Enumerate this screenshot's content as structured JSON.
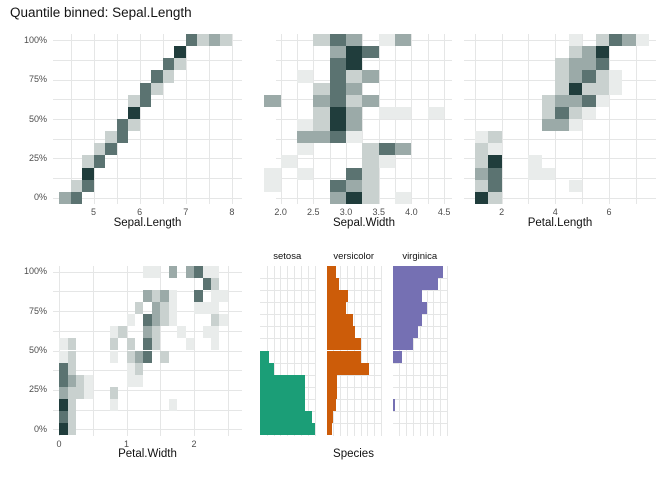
{
  "chart_data": {
    "type": "heatmap",
    "title": "Quantile binned: Sepal.Length",
    "y_axis": {
      "tick_labels": [
        "100%",
        "75%",
        "50%",
        "25%",
        "0%"
      ],
      "n_bins": 14
    },
    "shade_palette": [
      "#e9eceb",
      "#c9d1cf",
      "#9baaa8",
      "#5b7371",
      "#203d3c"
    ],
    "grid_color": "#e5e6e6",
    "panels": [
      {
        "key": "sepal-length",
        "xlabel": "Sepal.Length",
        "xmin": 4.12,
        "xmax": 8.22,
        "col0": 4.25,
        "colw": 0.25,
        "ticks": [
          {
            "v": 5,
            "l": "5"
          },
          {
            "v": 6,
            "l": "6"
          },
          {
            "v": 7,
            "l": "7"
          },
          {
            "v": 8,
            "l": "8"
          }
        ],
        "grid_values": [
          4.5,
          5,
          5.5,
          6,
          6.5,
          7,
          7.5,
          8
        ],
        "tiles": [
          [
            1,
            0,
            3
          ],
          [
            1,
            1,
            4
          ],
          [
            2,
            1,
            2
          ],
          [
            2,
            2,
            4
          ],
          [
            3,
            2,
            5
          ],
          [
            4,
            2,
            2
          ],
          [
            4,
            3,
            4
          ],
          [
            5,
            3,
            2
          ],
          [
            5,
            4,
            4
          ],
          [
            6,
            4,
            2
          ],
          [
            6,
            5,
            4
          ],
          [
            7,
            5,
            4
          ],
          [
            7,
            6,
            2
          ],
          [
            8,
            6,
            5
          ],
          [
            9,
            6,
            2
          ],
          [
            9,
            7,
            4
          ],
          [
            10,
            7,
            4
          ],
          [
            10,
            8,
            2
          ],
          [
            11,
            8,
            4
          ],
          [
            11,
            9,
            2
          ],
          [
            12,
            9,
            4
          ],
          [
            12,
            10,
            2
          ],
          [
            13,
            10,
            5
          ],
          [
            14,
            11,
            4
          ],
          [
            14,
            12,
            2
          ],
          [
            14,
            13,
            3
          ],
          [
            14,
            14,
            2
          ]
        ]
      },
      {
        "key": "sepal-width",
        "xlabel": "Sepal.Width",
        "xmin": 1.93,
        "xmax": 4.62,
        "col0": 1.75,
        "colw": 0.25,
        "ticks": [
          {
            "v": 2,
            "l": "2.0"
          },
          {
            "v": 2.5,
            "l": "2.5"
          },
          {
            "v": 3,
            "l": "3.0"
          },
          {
            "v": 3.5,
            "l": "3.5"
          },
          {
            "v": 4,
            "l": "4.0"
          },
          {
            "v": 4.5,
            "l": "4.5"
          }
        ],
        "grid_values": [
          2,
          2.25,
          2.5,
          2.75,
          3,
          3.25,
          3.5,
          3.75,
          4,
          4.25,
          4.5
        ],
        "tiles": [
          [
            1,
            4,
            3
          ],
          [
            1,
            5,
            5
          ],
          [
            1,
            6,
            2
          ],
          [
            1,
            8,
            1
          ],
          [
            2,
            0,
            1
          ],
          [
            2,
            4,
            4
          ],
          [
            2,
            5,
            3
          ],
          [
            2,
            6,
            2
          ],
          [
            3,
            0,
            1
          ],
          [
            3,
            2,
            1
          ],
          [
            3,
            5,
            4
          ],
          [
            3,
            6,
            2
          ],
          [
            4,
            1,
            1
          ],
          [
            4,
            6,
            2
          ],
          [
            4,
            7,
            1
          ],
          [
            5,
            2,
            1
          ],
          [
            5,
            6,
            2
          ],
          [
            5,
            7,
            4
          ],
          [
            5,
            8,
            3
          ],
          [
            6,
            2,
            3
          ],
          [
            6,
            3,
            3
          ],
          [
            6,
            4,
            4
          ],
          [
            6,
            5,
            1
          ],
          [
            7,
            2,
            1
          ],
          [
            7,
            3,
            2
          ],
          [
            7,
            4,
            5
          ],
          [
            7,
            5,
            3
          ],
          [
            8,
            3,
            2
          ],
          [
            8,
            4,
            5
          ],
          [
            8,
            5,
            3
          ],
          [
            8,
            7,
            1
          ],
          [
            8,
            8,
            1
          ],
          [
            8,
            10,
            1
          ],
          [
            9,
            0,
            3
          ],
          [
            9,
            3,
            3
          ],
          [
            9,
            4,
            4
          ],
          [
            9,
            5,
            2
          ],
          [
            9,
            6,
            3
          ],
          [
            10,
            3,
            2
          ],
          [
            10,
            4,
            4
          ],
          [
            10,
            5,
            3
          ],
          [
            11,
            2,
            1
          ],
          [
            11,
            4,
            4
          ],
          [
            11,
            5,
            2
          ],
          [
            11,
            6,
            3
          ],
          [
            12,
            4,
            4
          ],
          [
            12,
            5,
            5
          ],
          [
            13,
            4,
            3
          ],
          [
            13,
            5,
            5
          ],
          [
            13,
            6,
            4
          ],
          [
            14,
            3,
            2
          ],
          [
            14,
            4,
            4
          ],
          [
            14,
            5,
            3
          ],
          [
            14,
            7,
            1
          ],
          [
            14,
            8,
            3
          ]
        ]
      },
      {
        "key": "petal-length",
        "xlabel": "Petal.Length",
        "xmin": 0.6,
        "xmax": 7.75,
        "col0": 1.0,
        "colw": 0.5,
        "ticks": [
          {
            "v": 2,
            "l": "2"
          },
          {
            "v": 4,
            "l": "4"
          },
          {
            "v": 6,
            "l": "6"
          }
        ],
        "grid_values": [
          1,
          2,
          3,
          4,
          5,
          6,
          7
        ],
        "tiles": [
          [
            1,
            0,
            5
          ],
          [
            1,
            1,
            2
          ],
          [
            2,
            0,
            2
          ],
          [
            2,
            1,
            4
          ],
          [
            2,
            7,
            1
          ],
          [
            3,
            0,
            3
          ],
          [
            3,
            1,
            4
          ],
          [
            3,
            4,
            1
          ],
          [
            3,
            5,
            1
          ],
          [
            4,
            0,
            2
          ],
          [
            4,
            1,
            5
          ],
          [
            4,
            4,
            1
          ],
          [
            5,
            0,
            2
          ],
          [
            5,
            1,
            1
          ],
          [
            6,
            0,
            1
          ],
          [
            6,
            1,
            2
          ],
          [
            7,
            5,
            3
          ],
          [
            7,
            6,
            3
          ],
          [
            7,
            7,
            1
          ],
          [
            8,
            5,
            2
          ],
          [
            8,
            6,
            4
          ],
          [
            8,
            7,
            2
          ],
          [
            8,
            8,
            1
          ],
          [
            9,
            5,
            2
          ],
          [
            9,
            6,
            3
          ],
          [
            9,
            7,
            3
          ],
          [
            9,
            8,
            4
          ],
          [
            9,
            9,
            1
          ],
          [
            10,
            6,
            2
          ],
          [
            10,
            7,
            5
          ],
          [
            10,
            8,
            2
          ],
          [
            10,
            9,
            2
          ],
          [
            10,
            10,
            1
          ],
          [
            11,
            6,
            2
          ],
          [
            11,
            7,
            3
          ],
          [
            11,
            8,
            4
          ],
          [
            11,
            9,
            2
          ],
          [
            11,
            10,
            1
          ],
          [
            12,
            6,
            2
          ],
          [
            12,
            7,
            3
          ],
          [
            12,
            8,
            3
          ],
          [
            12,
            9,
            4
          ],
          [
            13,
            7,
            2
          ],
          [
            13,
            8,
            3
          ],
          [
            13,
            9,
            5
          ],
          [
            14,
            7,
            1
          ],
          [
            14,
            9,
            2
          ],
          [
            14,
            10,
            4
          ],
          [
            14,
            11,
            3
          ],
          [
            14,
            12,
            1
          ]
        ]
      },
      {
        "key": "petal-width",
        "xlabel": "Petal.Width",
        "xmin": -0.09,
        "xmax": 2.71,
        "col0": 0.0,
        "colw": 0.125,
        "ticks": [
          {
            "v": 0,
            "l": "0"
          },
          {
            "v": 1,
            "l": "1"
          },
          {
            "v": 2,
            "l": "2"
          }
        ],
        "grid_values": [
          0,
          0.5,
          1,
          1.5,
          2,
          2.5
        ],
        "tiles": [
          [
            1,
            0,
            5
          ],
          [
            1,
            1,
            2
          ],
          [
            2,
            0,
            4
          ],
          [
            2,
            1,
            2
          ],
          [
            3,
            0,
            5
          ],
          [
            3,
            1,
            2
          ],
          [
            3,
            6,
            1
          ],
          [
            3,
            13,
            1
          ],
          [
            4,
            0,
            3
          ],
          [
            4,
            1,
            2
          ],
          [
            4,
            2,
            2
          ],
          [
            4,
            3,
            1
          ],
          [
            4,
            6,
            2
          ],
          [
            5,
            0,
            4
          ],
          [
            5,
            1,
            3
          ],
          [
            5,
            2,
            2
          ],
          [
            5,
            3,
            1
          ],
          [
            5,
            8,
            1
          ],
          [
            5,
            9,
            1
          ],
          [
            6,
            0,
            4
          ],
          [
            6,
            1,
            2
          ],
          [
            6,
            8,
            1
          ],
          [
            6,
            9,
            2
          ],
          [
            7,
            0,
            1
          ],
          [
            7,
            1,
            2
          ],
          [
            7,
            6,
            1
          ],
          [
            7,
            8,
            2
          ],
          [
            7,
            9,
            3
          ],
          [
            7,
            10,
            4
          ],
          [
            7,
            12,
            2
          ],
          [
            8,
            0,
            1
          ],
          [
            8,
            1,
            2
          ],
          [
            8,
            6,
            2
          ],
          [
            8,
            8,
            2
          ],
          [
            8,
            10,
            4
          ],
          [
            8,
            11,
            2
          ],
          [
            8,
            15,
            1
          ],
          [
            8,
            18,
            1
          ],
          [
            9,
            6,
            1
          ],
          [
            9,
            7,
            2
          ],
          [
            9,
            10,
            3
          ],
          [
            9,
            11,
            2
          ],
          [
            9,
            14,
            1
          ],
          [
            9,
            17,
            1
          ],
          [
            9,
            18,
            1
          ],
          [
            10,
            8,
            1
          ],
          [
            10,
            10,
            4
          ],
          [
            10,
            11,
            3
          ],
          [
            10,
            12,
            2
          ],
          [
            10,
            13,
            1
          ],
          [
            10,
            18,
            2
          ],
          [
            10,
            19,
            1
          ],
          [
            11,
            9,
            2
          ],
          [
            11,
            11,
            3
          ],
          [
            11,
            12,
            2
          ],
          [
            11,
            13,
            1
          ],
          [
            11,
            16,
            1
          ],
          [
            11,
            17,
            1
          ],
          [
            11,
            18,
            1
          ],
          [
            12,
            10,
            3
          ],
          [
            12,
            11,
            2
          ],
          [
            12,
            12,
            3
          ],
          [
            12,
            13,
            1
          ],
          [
            12,
            16,
            4
          ],
          [
            12,
            18,
            1
          ],
          [
            12,
            19,
            1
          ],
          [
            13,
            17,
            4
          ],
          [
            13,
            18,
            2
          ],
          [
            14,
            10,
            1
          ],
          [
            14,
            11,
            1
          ],
          [
            14,
            13,
            3
          ],
          [
            14,
            15,
            3
          ],
          [
            14,
            16,
            4
          ],
          [
            14,
            17,
            1
          ],
          [
            14,
            18,
            1
          ]
        ]
      }
    ],
    "species": {
      "xlabel": "Species",
      "groups": [
        {
          "label": "setosa",
          "color": "#1b9e77",
          "bars": [
            1.0,
            0.96,
            0.82,
            0.82,
            0.82,
            0.26,
            0.16,
            0,
            0,
            0,
            0,
            0,
            0,
            0
          ]
        },
        {
          "label": "versicolor",
          "color": "#cc5c09",
          "bars": [
            0.1,
            0.12,
            0.17,
            0.2,
            0.2,
            0.78,
            0.63,
            0.63,
            0.53,
            0.49,
            0.36,
            0.4,
            0.23,
            0.17
          ]
        },
        {
          "label": "virginica",
          "color": "#7570b3",
          "bars": [
            0,
            0,
            0.05,
            0,
            0,
            0,
            0.17,
            0.38,
            0.46,
            0.55,
            0.63,
            0.55,
            0.83,
            0.93
          ]
        }
      ]
    }
  }
}
